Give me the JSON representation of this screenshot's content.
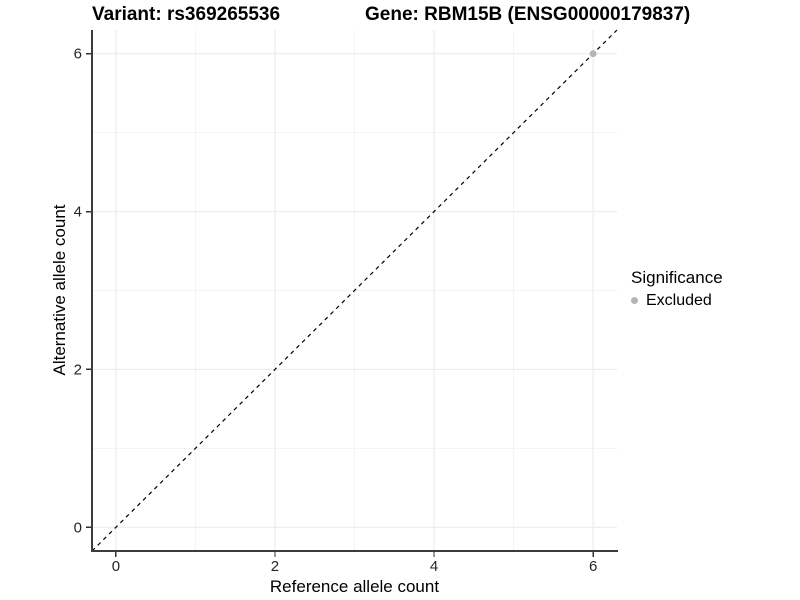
{
  "chart_data": {
    "type": "scatter",
    "title_left": "Variant: rs369265536",
    "title_right": "Gene: RBM15B (ENSG00000179837)",
    "xlabel": "Reference allele count",
    "ylabel": "Alternative allele count",
    "xlim": [
      -0.3,
      6.3
    ],
    "ylim": [
      -0.3,
      6.3
    ],
    "xticks": [
      0,
      2,
      4,
      6
    ],
    "yticks": [
      0,
      2,
      4,
      6
    ],
    "xticks_minor": [
      1,
      3,
      5
    ],
    "yticks_minor": [
      1,
      3,
      5
    ],
    "grid": "on",
    "legend_position": "right",
    "identity_line": {
      "style": "dashed",
      "color": "#000000",
      "from": -0.3,
      "to": 6.3
    },
    "series": [
      {
        "name": "Excluded",
        "color": "#b5b5b5",
        "points": [
          {
            "x": 6,
            "y": 6
          }
        ]
      }
    ],
    "legend": {
      "title": "Significance",
      "items": [
        {
          "label": "Excluded",
          "color": "#b5b5b5"
        }
      ]
    }
  },
  "colors": {
    "background": "#ffffff",
    "axis_line": "#3c3c3c",
    "tick_mark": "#333333",
    "tick_label": "#262626",
    "grid_major": "#ececec",
    "grid_minor": "#f3f3f3"
  }
}
